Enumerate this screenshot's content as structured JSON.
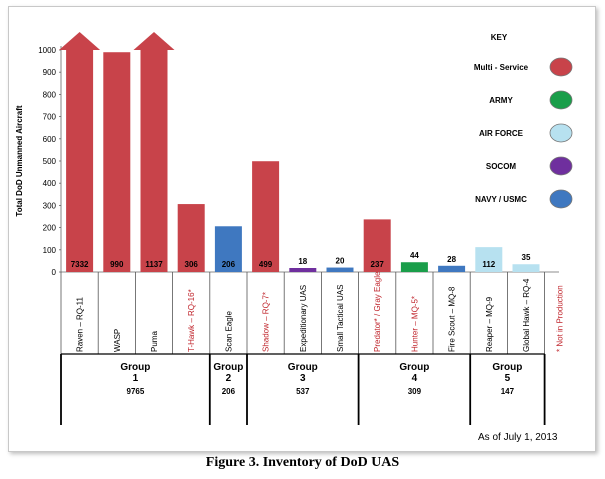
{
  "caption": "Figure 3. Inventory of DoD UAS",
  "as_of": "As of July 1, 2013",
  "key_title": "KEY",
  "legend": [
    {
      "label": "Multi - Service",
      "color": "#c8434a"
    },
    {
      "label": "ARMY",
      "color": "#1a9e4a"
    },
    {
      "label": "AIR FORCE",
      "color": "#b7e1f0"
    },
    {
      "label": "SOCOM",
      "color": "#6f2f9e"
    },
    {
      "label": "NAVY / USMC",
      "color": "#3f78c0"
    }
  ],
  "chart_data": {
    "type": "bar",
    "ylabel": "Total DoD Unmanned Aircraft",
    "ylim": [
      0,
      1000
    ],
    "yticks": [
      0,
      100,
      200,
      300,
      400,
      500,
      600,
      700,
      800,
      900,
      1000
    ],
    "categories": [
      "Raven – RQ-11",
      "WASP",
      "Puma",
      "T-Hawk – RQ-16*",
      "Scan Eagle",
      "Shadow – RQ-7*",
      "Expeditionary UAS",
      "Small Tactical UAS",
      "Predator* / Gray Eagle",
      "Hunter – MQ-5*",
      "Fire Scout – MQ-8",
      "Reaper – MQ-9",
      "Global Hawk – RQ-4"
    ],
    "values": [
      7332,
      990,
      1137,
      306,
      206,
      499,
      18,
      20,
      237,
      44,
      28,
      112,
      35
    ],
    "value_labels": [
      "7332",
      "990",
      "1137",
      "306",
      "206",
      "499",
      "18",
      "20",
      "237",
      "44",
      "28",
      "112",
      "35"
    ],
    "label_red": [
      false,
      false,
      false,
      true,
      false,
      true,
      false,
      false,
      true,
      true,
      false,
      false,
      false
    ],
    "bar_colors": [
      "#c8434a",
      "#c8434a",
      "#c8434a",
      "#c8434a",
      "#3f78c0",
      "#c8434a",
      "#6f2f9e",
      "#3f78c0",
      "#c8434a",
      "#1a9e4a",
      "#3f78c0",
      "#b7e1f0",
      "#b7e1f0"
    ],
    "exceeds_axis": [
      true,
      false,
      true,
      false,
      false,
      false,
      false,
      false,
      false,
      false,
      false,
      false,
      false
    ],
    "groups": [
      {
        "name": "Group",
        "number": "1",
        "total": "9765"
      },
      {
        "name": "Group",
        "number": "2",
        "total": "206"
      },
      {
        "name": "Group",
        "number": "3",
        "total": "537"
      },
      {
        "name": "Group",
        "number": "4",
        "total": "309"
      },
      {
        "name": "Group",
        "number": "5",
        "total": "147"
      }
    ],
    "group_bar_counts": [
      4,
      1,
      3,
      3,
      2
    ],
    "footnote": "* Not in Production"
  }
}
